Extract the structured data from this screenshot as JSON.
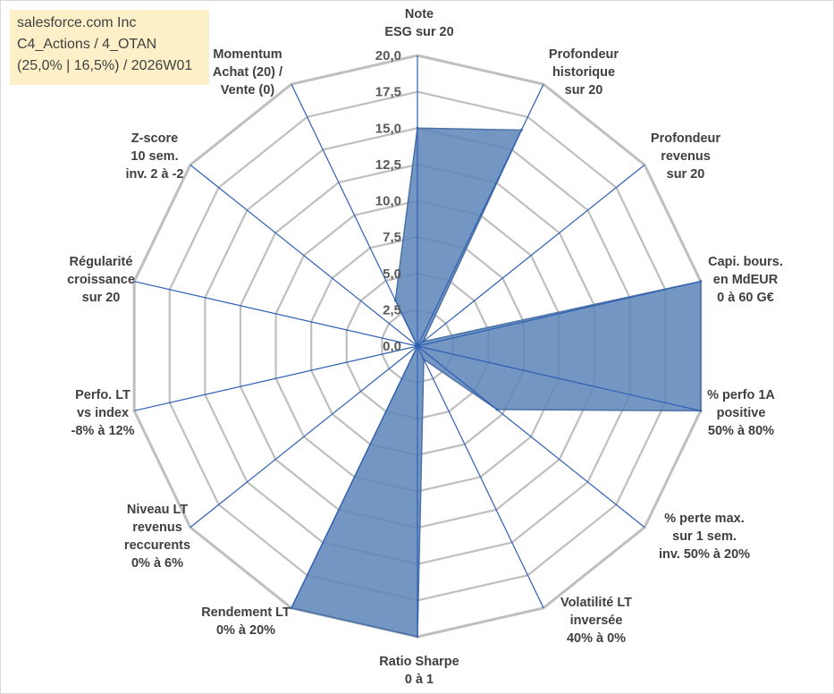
{
  "info_box": {
    "line1": "salesforce.com Inc",
    "line2": "C4_Actions / 4_OTAN",
    "line3": "(25,0% | 16,5%) / 2026W01"
  },
  "chart_data": {
    "type": "radar",
    "title": "",
    "range": [
      0,
      20
    ],
    "tick_labels": [
      "0,0",
      "2,5",
      "5,0",
      "7,5",
      "10,0",
      "12,5",
      "15,0",
      "17,5",
      "20,0"
    ],
    "grid": true,
    "axes": [
      {
        "label": [
          "Note",
          "ESG sur 20"
        ]
      },
      {
        "label": [
          "Profondeur",
          "historique",
          "sur 20"
        ]
      },
      {
        "label": [
          "Profondeur",
          "revenus",
          "sur 20"
        ]
      },
      {
        "label": [
          "Capi. bours.",
          "en MdEUR",
          "0 à 60 G€"
        ]
      },
      {
        "label": [
          "% perfo 1A",
          "positive",
          "50% à 80%"
        ]
      },
      {
        "label": [
          "% perte max.",
          "sur 1 sem.",
          "inv. 50% à 20%"
        ]
      },
      {
        "label": [
          "Volatilité LT",
          "inversée",
          "40% à 0%"
        ]
      },
      {
        "label": [
          "Ratio Sharpe",
          "0 à 1"
        ]
      },
      {
        "label": [
          "Rendement LT",
          "0% à 20%"
        ]
      },
      {
        "label": [
          "Niveau LT",
          "revenus",
          "reccurents",
          "0% à 6%"
        ]
      },
      {
        "label": [
          "Perfo. LT",
          "vs index",
          "-8% à 12%"
        ]
      },
      {
        "label": [
          "Régularité",
          "croissance",
          "sur 20"
        ]
      },
      {
        "label": [
          "Z-score",
          "10 sem.",
          "inv. 2 à -2"
        ]
      },
      {
        "label": [
          "Momentum",
          "Achat (20) /",
          "Vente (0)"
        ]
      }
    ],
    "series": [
      {
        "color": "#5b84b8",
        "values": [
          15.0,
          16.5,
          0.5,
          20.0,
          20.0,
          7.0,
          1.0,
          20.0,
          20.0,
          0.0,
          0.0,
          0.0,
          0.0,
          3.5
        ]
      }
    ],
    "colors": {
      "fill": "#5b84b8",
      "edge": "#4a72a6",
      "spoke": "#2f5fb3",
      "grid": "#bfbfbf"
    }
  }
}
